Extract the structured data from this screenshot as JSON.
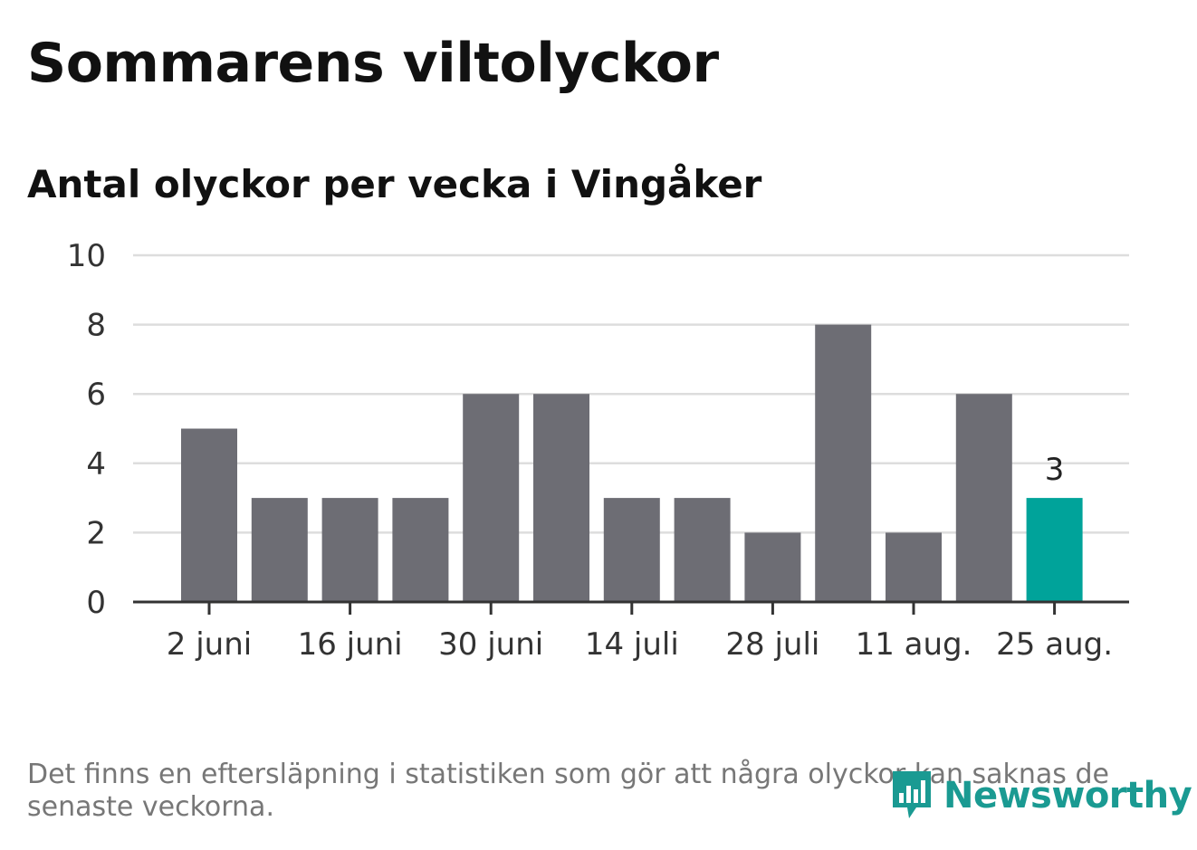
{
  "header": {
    "title": "Sommarens viltolyckor",
    "subtitle": "Antal olyckor per vecka i Vingåker"
  },
  "footer": {
    "note": "Det finns en eftersläpning i statistiken som gör att några olyckor kan saknas de senaste veckorna.",
    "brand": "Newsworthy",
    "brand_icon": "newsworthy-logo-icon"
  },
  "colors": {
    "bar": "#6d6d74",
    "highlight": "#00a39a",
    "grid": "#dddddd",
    "axis": "#333333",
    "brand": "#1a9a92"
  },
  "chart_data": {
    "type": "bar",
    "title": "Antal olyckor per vecka i Vingåker",
    "xlabel": "",
    "ylabel": "",
    "ylim": [
      0,
      10
    ],
    "yticks": [
      0,
      2,
      4,
      6,
      8,
      10
    ],
    "grid": true,
    "categories": [
      "2 juni",
      "9 juni",
      "16 juni",
      "23 juni",
      "30 juni",
      "7 juli",
      "14 juli",
      "21 juli",
      "28 juli",
      "4 aug.",
      "11 aug.",
      "18 aug.",
      "25 aug."
    ],
    "xtick_labels": [
      "2 juni",
      "",
      "16 juni",
      "",
      "30 juni",
      "",
      "14 juli",
      "",
      "28 juli",
      "",
      "11 aug.",
      "",
      "25 aug."
    ],
    "values": [
      5,
      3,
      3,
      3,
      6,
      6,
      3,
      3,
      2,
      8,
      2,
      6,
      3
    ],
    "highlight_index": 12,
    "data_labels": [
      "",
      "",
      "",
      "",
      "",
      "",
      "",
      "",
      "",
      "",
      "",
      "",
      "3"
    ]
  }
}
